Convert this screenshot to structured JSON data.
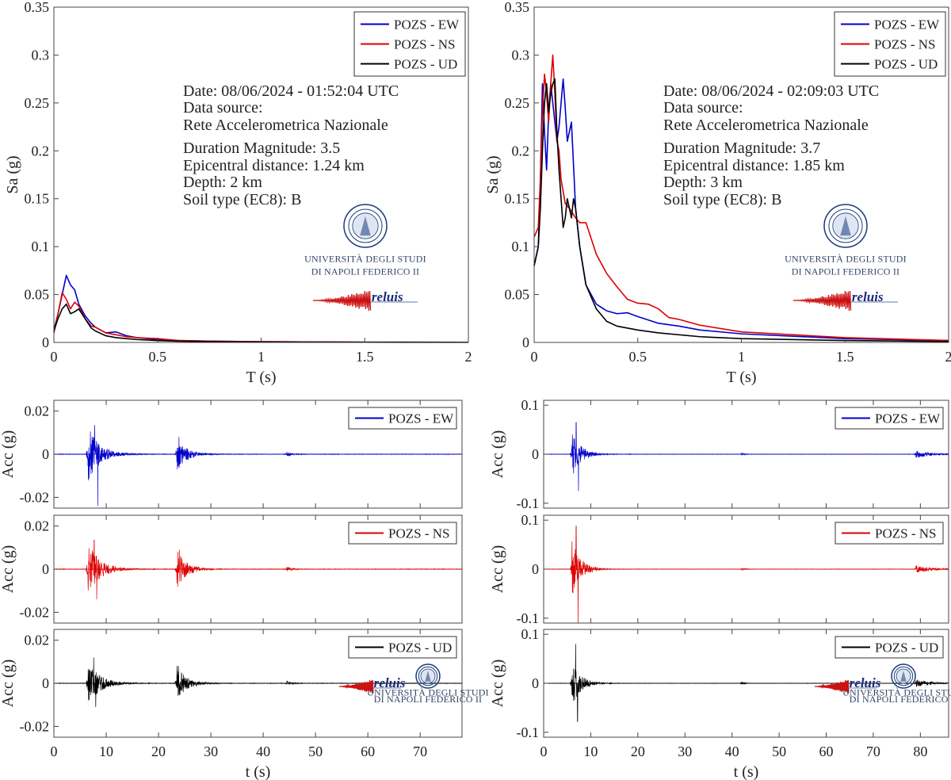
{
  "colors": {
    "ew": "#0000cc",
    "ns": "#dd0000",
    "ud": "#000000",
    "logo": "#1a3a78",
    "reluis_red": "#cc1111"
  },
  "legend": {
    "ew": "POZS - EW",
    "ns": "POZS - NS",
    "ud": "POZS - UD"
  },
  "logo": {
    "uni_line1": "UNIVERSITÀ DEGLI STUDI",
    "uni_line2": "DI NAPOLI FEDERICO II",
    "reluis": "reluis"
  },
  "chart_data": [
    {
      "id": "sa-left",
      "type": "line",
      "title": "",
      "xlabel": "T (s)",
      "ylabel": "Sa (g)",
      "xlim": [
        0,
        2
      ],
      "ylim": [
        0,
        0.35
      ],
      "xticks": [
        0,
        0.5,
        1,
        1.5,
        2
      ],
      "xtick_labels": [
        "0",
        "0.5",
        "1",
        "1.5",
        "2"
      ],
      "yticks": [
        0,
        0.05,
        0.1,
        0.15,
        0.2,
        0.25,
        0.3,
        0.35
      ],
      "ytick_labels": [
        "0",
        "0.05",
        "0.1",
        "0.15",
        "0.2",
        "0.25",
        "0.3",
        "0.35"
      ],
      "info": {
        "date": "Date: 08/06/2024 - 01:52:04 UTC",
        "source_label": "Data source:",
        "source": "Rete Accelerometrica Nazionale",
        "magnitude": "Duration Magnitude: 3.5",
        "distance": "Epicentral distance: 1.24 km",
        "depth": "Depth: 2 km",
        "soil": "Soil type (EC8): B"
      },
      "series": [
        {
          "name": "POZS - EW",
          "color": "#0000cc",
          "x": [
            0,
            0.02,
            0.04,
            0.06,
            0.08,
            0.1,
            0.12,
            0.15,
            0.18,
            0.2,
            0.25,
            0.3,
            0.35,
            0.4,
            0.5,
            0.6,
            0.8,
            1.0,
            1.5,
            2.0
          ],
          "y": [
            0.013,
            0.03,
            0.05,
            0.07,
            0.06,
            0.055,
            0.04,
            0.028,
            0.02,
            0.016,
            0.01,
            0.011,
            0.007,
            0.005,
            0.003,
            0.002,
            0.0012,
            0.0008,
            0.0003,
            0.0002
          ]
        },
        {
          "name": "POZS - NS",
          "color": "#dd0000",
          "x": [
            0,
            0.02,
            0.04,
            0.06,
            0.08,
            0.1,
            0.12,
            0.15,
            0.18,
            0.2,
            0.25,
            0.3,
            0.35,
            0.4,
            0.5,
            0.6,
            0.8,
            1.0,
            1.5,
            2.0
          ],
          "y": [
            0.01,
            0.03,
            0.052,
            0.045,
            0.035,
            0.042,
            0.038,
            0.025,
            0.017,
            0.016,
            0.01,
            0.008,
            0.006,
            0.005,
            0.004,
            0.002,
            0.0012,
            0.0008,
            0.0003,
            0.0002
          ]
        },
        {
          "name": "POZS - UD",
          "color": "#000000",
          "x": [
            0,
            0.02,
            0.04,
            0.06,
            0.08,
            0.1,
            0.12,
            0.15,
            0.18,
            0.2,
            0.25,
            0.3,
            0.35,
            0.4,
            0.5,
            0.6,
            0.8,
            1.0,
            1.5,
            2.0
          ],
          "y": [
            0.012,
            0.025,
            0.035,
            0.04,
            0.03,
            0.032,
            0.035,
            0.025,
            0.015,
            0.012,
            0.007,
            0.005,
            0.004,
            0.003,
            0.002,
            0.0013,
            0.0008,
            0.0005,
            0.0002,
            0.0001
          ]
        }
      ]
    },
    {
      "id": "sa-right",
      "type": "line",
      "title": "",
      "xlabel": "T (s)",
      "ylabel": "Sa (g)",
      "xlim": [
        0,
        2
      ],
      "ylim": [
        0,
        0.35
      ],
      "xticks": [
        0,
        0.5,
        1,
        1.5,
        2
      ],
      "xtick_labels": [
        "0",
        "0.5",
        "1",
        "1.5",
        "2"
      ],
      "yticks": [
        0,
        0.05,
        0.1,
        0.15,
        0.2,
        0.25,
        0.3,
        0.35
      ],
      "ytick_labels": [
        "0",
        "0.05",
        "0.1",
        "0.15",
        "0.2",
        "0.25",
        "0.3",
        "0.35"
      ],
      "info": {
        "date": "Date: 08/06/2024 - 02:09:03 UTC",
        "source_label": "Data source:",
        "source": "Rete Accelerometrica Nazionale",
        "magnitude": "Duration Magnitude: 3.7",
        "distance": "Epicentral distance: 1.85 km",
        "depth": "Depth: 3 km",
        "soil": "Soil type (EC8): B"
      },
      "series": [
        {
          "name": "POZS - EW",
          "color": "#0000cc",
          "x": [
            0,
            0.02,
            0.03,
            0.04,
            0.05,
            0.06,
            0.07,
            0.08,
            0.09,
            0.1,
            0.11,
            0.12,
            0.13,
            0.14,
            0.15,
            0.16,
            0.18,
            0.2,
            0.22,
            0.25,
            0.3,
            0.35,
            0.4,
            0.45,
            0.5,
            0.6,
            0.7,
            0.8,
            1.0,
            1.5,
            2.0
          ],
          "y": [
            0.08,
            0.1,
            0.17,
            0.27,
            0.22,
            0.18,
            0.24,
            0.27,
            0.25,
            0.23,
            0.21,
            0.225,
            0.25,
            0.275,
            0.245,
            0.21,
            0.23,
            0.14,
            0.1,
            0.06,
            0.04,
            0.033,
            0.03,
            0.031,
            0.027,
            0.02,
            0.017,
            0.013,
            0.009,
            0.004,
            0.002
          ]
        },
        {
          "name": "POZS - NS",
          "color": "#dd0000",
          "x": [
            0,
            0.02,
            0.03,
            0.04,
            0.05,
            0.06,
            0.07,
            0.08,
            0.09,
            0.1,
            0.11,
            0.12,
            0.13,
            0.15,
            0.17,
            0.2,
            0.22,
            0.25,
            0.3,
            0.35,
            0.4,
            0.45,
            0.5,
            0.55,
            0.6,
            0.65,
            0.7,
            0.8,
            1.0,
            1.5,
            2.0
          ],
          "y": [
            0.11,
            0.12,
            0.17,
            0.24,
            0.28,
            0.26,
            0.23,
            0.27,
            0.3,
            0.26,
            0.21,
            0.2,
            0.17,
            0.145,
            0.14,
            0.13,
            0.125,
            0.125,
            0.092,
            0.072,
            0.058,
            0.045,
            0.041,
            0.04,
            0.035,
            0.026,
            0.024,
            0.018,
            0.011,
            0.005,
            0.002
          ]
        },
        {
          "name": "POZS - UD",
          "color": "#000000",
          "x": [
            0,
            0.02,
            0.03,
            0.04,
            0.05,
            0.06,
            0.07,
            0.08,
            0.09,
            0.1,
            0.11,
            0.12,
            0.13,
            0.14,
            0.15,
            0.16,
            0.17,
            0.18,
            0.19,
            0.2,
            0.22,
            0.25,
            0.3,
            0.35,
            0.4,
            0.5,
            0.6,
            0.8,
            1.0,
            1.5,
            2.0
          ],
          "y": [
            0.08,
            0.1,
            0.14,
            0.2,
            0.25,
            0.27,
            0.24,
            0.26,
            0.27,
            0.275,
            0.22,
            0.18,
            0.15,
            0.12,
            0.13,
            0.15,
            0.14,
            0.13,
            0.15,
            0.14,
            0.1,
            0.06,
            0.035,
            0.022,
            0.017,
            0.013,
            0.01,
            0.006,
            0.004,
            0.002,
            0.001
          ]
        }
      ]
    },
    {
      "id": "acc-left",
      "type": "line",
      "subtype": "waveform",
      "xlabel": "t (s)",
      "ylabel": "Acc (g)",
      "xlim": [
        0,
        78
      ],
      "xticks": [
        0,
        10,
        20,
        30,
        40,
        50,
        60,
        70
      ],
      "xtick_labels": [
        "0",
        "10",
        "20",
        "30",
        "40",
        "50",
        "60",
        "70"
      ],
      "yticks": [
        -0.02,
        0,
        0.02
      ],
      "ytick_labels": [
        "-0.02",
        "0",
        "0.02"
      ],
      "panels": [
        {
          "name": "POZS - EW",
          "color": "#0000cc",
          "ylim": [
            -0.025,
            0.025
          ],
          "bursts": [
            {
              "t": 6.5,
              "amp": 0.013,
              "decay": 2.2
            },
            {
              "t": 23.5,
              "amp": 0.008,
              "decay": 1.8
            },
            {
              "t": 44.5,
              "amp": 0.0012,
              "decay": 0.8
            }
          ],
          "peaks": [
            {
              "t": 7.8,
              "v": 0.0135
            },
            {
              "t": 8.4,
              "v": -0.024
            },
            {
              "t": 23.9,
              "v": 0.008
            }
          ],
          "noise": 0.0005
        },
        {
          "name": "POZS - NS",
          "color": "#dd0000",
          "ylim": [
            -0.025,
            0.025
          ],
          "bursts": [
            {
              "t": 6.5,
              "amp": 0.013,
              "decay": 2.2
            },
            {
              "t": 23.5,
              "amp": 0.009,
              "decay": 1.8
            },
            {
              "t": 44.5,
              "amp": 0.0012,
              "decay": 0.8
            }
          ],
          "peaks": [
            {
              "t": 7.7,
              "v": 0.0135
            },
            {
              "t": 8.2,
              "v": -0.014
            },
            {
              "t": 24.0,
              "v": 0.009
            }
          ],
          "noise": 0.0005
        },
        {
          "name": "POZS - UD",
          "color": "#000000",
          "ylim": [
            -0.025,
            0.025
          ],
          "bursts": [
            {
              "t": 6.5,
              "amp": 0.011,
              "decay": 2.2
            },
            {
              "t": 23.5,
              "amp": 0.008,
              "decay": 1.8
            },
            {
              "t": 44.5,
              "amp": 0.0012,
              "decay": 0.8
            }
          ],
          "peaks": [
            {
              "t": 7.6,
              "v": 0.012
            },
            {
              "t": 8.0,
              "v": -0.011
            },
            {
              "t": 23.8,
              "v": 0.008
            }
          ],
          "noise": 0.0005
        }
      ]
    },
    {
      "id": "acc-right",
      "type": "line",
      "subtype": "waveform",
      "xlabel": "t (s)",
      "ylabel": "Acc (g)",
      "xlim": [
        0,
        86
      ],
      "xticks": [
        0,
        10,
        20,
        30,
        40,
        50,
        60,
        70,
        80
      ],
      "xtick_labels": [
        "0",
        "10",
        "20",
        "30",
        "40",
        "50",
        "60",
        "70",
        "80"
      ],
      "yticks": [
        -0.1,
        0,
        0.1
      ],
      "ytick_labels": [
        "-0.1",
        "0",
        "0.1"
      ],
      "panels": [
        {
          "name": "POZS - EW",
          "color": "#0000cc",
          "ylim": [
            -0.11,
            0.11
          ],
          "bursts": [
            {
              "t": 6.0,
              "amp": 0.05,
              "decay": 1.8
            },
            {
              "t": 42,
              "amp": 0.003,
              "decay": 0.6
            },
            {
              "t": 79,
              "amp": 0.008,
              "decay": 3.0
            }
          ],
          "peaks": [
            {
              "t": 6.9,
              "v": 0.065
            },
            {
              "t": 7.4,
              "v": -0.075
            }
          ],
          "noise": 0.0015
        },
        {
          "name": "POZS - NS",
          "color": "#dd0000",
          "ylim": [
            -0.11,
            0.11
          ],
          "bursts": [
            {
              "t": 6.0,
              "amp": 0.06,
              "decay": 1.8
            },
            {
              "t": 42,
              "amp": 0.003,
              "decay": 0.6
            },
            {
              "t": 79,
              "amp": 0.008,
              "decay": 3.0
            }
          ],
          "peaks": [
            {
              "t": 6.9,
              "v": 0.088
            },
            {
              "t": 7.3,
              "v": -0.11
            }
          ],
          "noise": 0.0015
        },
        {
          "name": "POZS - UD",
          "color": "#000000",
          "ylim": [
            -0.11,
            0.11
          ],
          "bursts": [
            {
              "t": 6.0,
              "amp": 0.05,
              "decay": 1.8
            },
            {
              "t": 42,
              "amp": 0.003,
              "decay": 0.6
            },
            {
              "t": 79,
              "amp": 0.008,
              "decay": 3.0
            }
          ],
          "peaks": [
            {
              "t": 6.8,
              "v": 0.08
            },
            {
              "t": 7.2,
              "v": -0.078
            }
          ],
          "noise": 0.0015
        }
      ]
    }
  ]
}
